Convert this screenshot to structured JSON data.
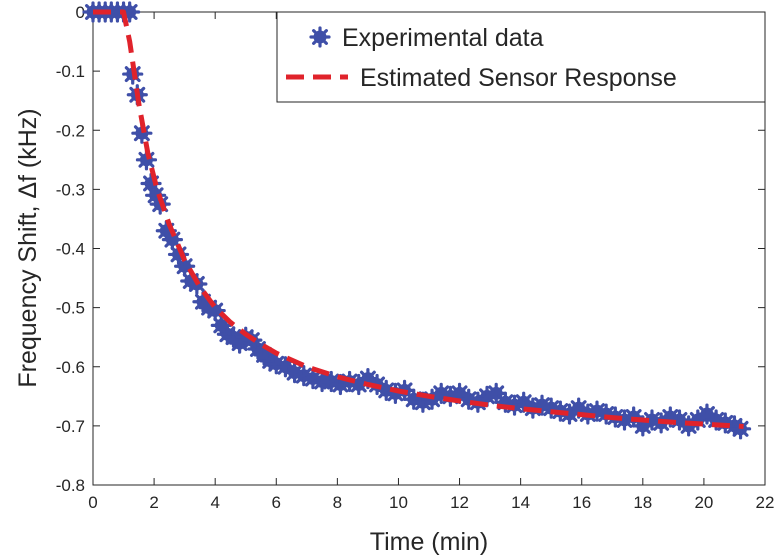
{
  "chart_data": {
    "type": "scatter",
    "title": "",
    "xlabel": "Time (min)",
    "ylabel": "Frequency Shift, Δf (kHz)",
    "xlim": [
      0,
      22
    ],
    "ylim": [
      -0.8,
      0
    ],
    "x_ticks": [
      0,
      2,
      4,
      6,
      8,
      10,
      12,
      14,
      16,
      18,
      20,
      22
    ],
    "x_tick_labels": [
      "0",
      "2",
      "4",
      "6",
      "8",
      "10",
      "12",
      "14",
      "16",
      "18",
      "20",
      "22"
    ],
    "y_ticks": [
      0,
      -0.1,
      -0.2,
      -0.3,
      -0.4,
      -0.5,
      -0.6,
      -0.7,
      -0.8
    ],
    "y_tick_labels": [
      "0",
      "-0.1",
      "-0.2",
      "-0.3",
      "-0.4",
      "-0.5",
      "-0.6",
      "-0.7",
      "-0.8"
    ],
    "grid": false,
    "legend_position": "top-right",
    "series": [
      {
        "name": "Experimental data",
        "kind": "scatter",
        "color": "#3f4fa8",
        "marker": "asterisk-filled",
        "x": [
          0.0,
          0.2,
          0.4,
          0.6,
          0.8,
          1.0,
          1.2,
          1.3,
          1.45,
          1.6,
          1.75,
          1.9,
          2.05,
          2.2,
          2.4,
          2.6,
          2.8,
          3.0,
          3.2,
          3.4,
          3.6,
          3.8,
          4.0,
          4.2,
          4.4,
          4.6,
          4.8,
          5.0,
          5.2,
          5.4,
          5.6,
          5.8,
          6.0,
          6.3,
          6.6,
          6.9,
          7.2,
          7.5,
          7.8,
          8.1,
          8.4,
          8.7,
          9.0,
          9.3,
          9.6,
          9.9,
          10.2,
          10.5,
          10.8,
          11.1,
          11.4,
          11.7,
          12.0,
          12.3,
          12.6,
          12.9,
          13.2,
          13.5,
          13.8,
          14.1,
          14.4,
          14.7,
          15.0,
          15.3,
          15.6,
          15.9,
          16.2,
          16.5,
          16.8,
          17.1,
          17.4,
          17.7,
          18.0,
          18.3,
          18.6,
          18.9,
          19.2,
          19.5,
          19.8,
          20.1,
          20.4,
          20.7,
          21.0,
          21.2
        ],
        "y": [
          0.0,
          0.0,
          0.0,
          0.0,
          0.0,
          0.0,
          0.0,
          -0.105,
          -0.14,
          -0.205,
          -0.25,
          -0.29,
          -0.31,
          -0.325,
          -0.37,
          -0.385,
          -0.41,
          -0.43,
          -0.455,
          -0.46,
          -0.49,
          -0.5,
          -0.505,
          -0.53,
          -0.545,
          -0.55,
          -0.56,
          -0.55,
          -0.555,
          -0.57,
          -0.58,
          -0.59,
          -0.595,
          -0.6,
          -0.61,
          -0.615,
          -0.62,
          -0.625,
          -0.625,
          -0.63,
          -0.625,
          -0.63,
          -0.62,
          -0.63,
          -0.64,
          -0.645,
          -0.64,
          -0.655,
          -0.66,
          -0.655,
          -0.645,
          -0.65,
          -0.645,
          -0.655,
          -0.66,
          -0.65,
          -0.645,
          -0.66,
          -0.665,
          -0.66,
          -0.67,
          -0.665,
          -0.67,
          -0.675,
          -0.68,
          -0.67,
          -0.68,
          -0.675,
          -0.68,
          -0.685,
          -0.69,
          -0.685,
          -0.7,
          -0.69,
          -0.695,
          -0.685,
          -0.69,
          -0.7,
          -0.69,
          -0.68,
          -0.69,
          -0.695,
          -0.7,
          -0.705
        ]
      },
      {
        "name": "Estimated Sensor Response",
        "kind": "line",
        "color": "#e0232b",
        "dash": true,
        "x": [
          0.0,
          0.5,
          1.0,
          1.2,
          1.5,
          1.8,
          2.1,
          2.5,
          3.0,
          3.5,
          4.0,
          4.5,
          5.0,
          5.5,
          6.0,
          7.0,
          8.0,
          9.0,
          10.0,
          11.0,
          12.0,
          13.0,
          14.0,
          15.0,
          16.0,
          17.0,
          18.0,
          19.0,
          20.0,
          21.0,
          21.3
        ],
        "y": [
          0.0,
          0.0,
          0.0,
          -0.05,
          -0.155,
          -0.24,
          -0.3,
          -0.36,
          -0.42,
          -0.465,
          -0.5,
          -0.525,
          -0.545,
          -0.562,
          -0.577,
          -0.6,
          -0.617,
          -0.63,
          -0.641,
          -0.65,
          -0.658,
          -0.665,
          -0.671,
          -0.676,
          -0.681,
          -0.686,
          -0.69,
          -0.694,
          -0.697,
          -0.7,
          -0.701
        ]
      }
    ]
  }
}
